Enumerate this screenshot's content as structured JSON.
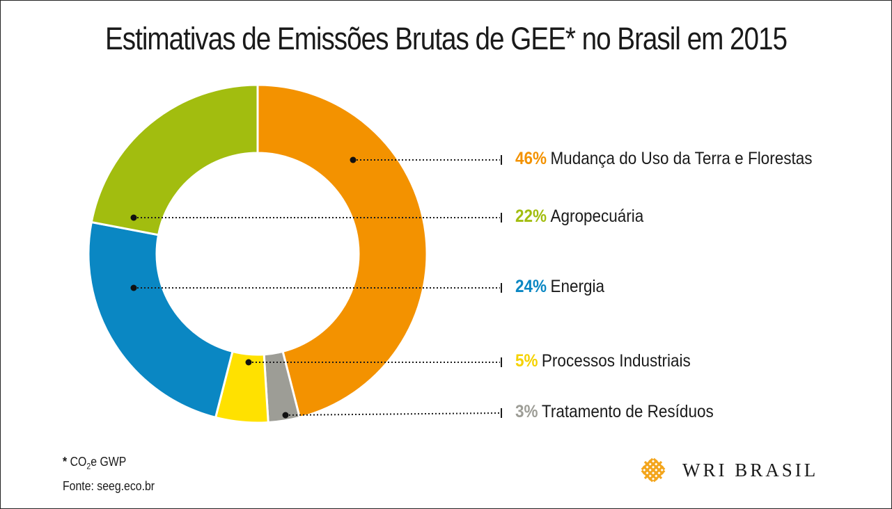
{
  "chart_data": {
    "type": "pie",
    "variant": "donut",
    "title": "Estimativas de Emissões Brutas de GEE* no Brasil em 2015",
    "slices": [
      {
        "label": "Mudança do Uso da Terra e Florestas",
        "value": 46,
        "pct_label": "46%",
        "color": "#F39200"
      },
      {
        "label": "Tratamento de Resíduos",
        "value": 3,
        "pct_label": "3%",
        "color": "#9D9D96"
      },
      {
        "label": "Processos Industriais",
        "value": 5,
        "pct_label": "5%",
        "color": "#FFE100"
      },
      {
        "label": "Energia",
        "value": 24,
        "pct_label": "24%",
        "color": "#0A87C3"
      },
      {
        "label": "Agropecuária",
        "value": 22,
        "pct_label": "22%",
        "color": "#A2BD0F"
      }
    ],
    "legend_order": [
      0,
      4,
      3,
      2,
      1
    ],
    "legend_placement": "right"
  },
  "footnote": {
    "star": "*",
    "co2": "CO",
    "sub": "2",
    "rest": "e GWP",
    "source": "Fonte: seeg.eco.br"
  },
  "logo": {
    "text": "WRI BRASIL",
    "icon": "wri-knot-logo-icon",
    "color": "#F3A51C"
  }
}
